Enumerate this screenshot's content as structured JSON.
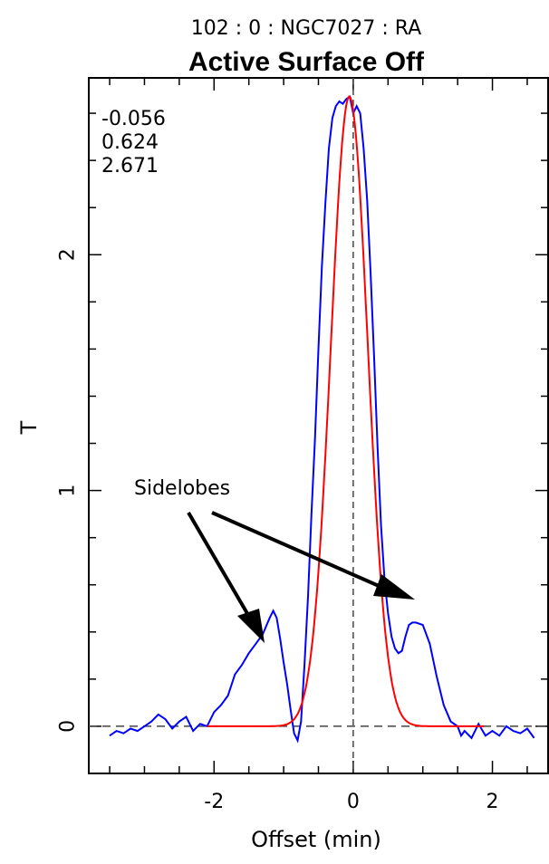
{
  "header": {
    "subtitle": "102 : 0 : NGC7027 : RA",
    "title": "Active Surface Off"
  },
  "stats": [
    "-0.056",
    "0.624",
    "2.671"
  ],
  "annotation": "Sidelobes",
  "colors": {
    "data_series": "#0000ff",
    "fit_series": "#ff0000",
    "reference_lines": "#000000"
  },
  "chart_data": {
    "type": "line",
    "title": "Active Surface Off",
    "subtitle": "102 : 0 : NGC7027 : RA",
    "xlabel": "Offset (min)",
    "ylabel": "T",
    "xlim": [
      -3.8,
      2.8
    ],
    "ylim": [
      -0.2,
      2.75
    ],
    "xticks": [
      -2,
      0,
      2
    ],
    "xtick_labels": [
      "-2",
      "0",
      "2"
    ],
    "yticks": [
      0,
      1,
      2
    ],
    "ytick_labels": [
      "0",
      "1",
      "2"
    ],
    "grid": false,
    "reference_lines": [
      {
        "axis": "x",
        "value": 0,
        "style": "dashed"
      },
      {
        "axis": "y",
        "value": 0,
        "style": "dashed"
      }
    ],
    "series": [
      {
        "color": "#0000ff",
        "x": [
          -3.5,
          -3.4,
          -3.3,
          -3.2,
          -3.1,
          -3.0,
          -2.9,
          -2.8,
          -2.7,
          -2.6,
          -2.5,
          -2.4,
          -2.3,
          -2.2,
          -2.1,
          -2.0,
          -1.9,
          -1.8,
          -1.7,
          -1.6,
          -1.5,
          -1.4,
          -1.3,
          -1.2,
          -1.15,
          -1.1,
          -1.05,
          -1.0,
          -0.95,
          -0.9,
          -0.85,
          -0.8,
          -0.75,
          -0.7,
          -0.65,
          -0.6,
          -0.55,
          -0.5,
          -0.45,
          -0.4,
          -0.35,
          -0.3,
          -0.25,
          -0.2,
          -0.15,
          -0.1,
          -0.05,
          0.0,
          0.05,
          0.1,
          0.15,
          0.2,
          0.25,
          0.3,
          0.35,
          0.4,
          0.45,
          0.5,
          0.55,
          0.6,
          0.65,
          0.7,
          0.75,
          0.8,
          0.85,
          0.9,
          1.0,
          1.1,
          1.2,
          1.3,
          1.4,
          1.5,
          1.55,
          1.6,
          1.7,
          1.8,
          1.9,
          2.0,
          2.1,
          2.2,
          2.3,
          2.4,
          2.5,
          2.6
        ],
        "y": [
          -0.04,
          -0.02,
          -0.03,
          -0.01,
          -0.02,
          0.0,
          0.02,
          0.05,
          0.03,
          -0.01,
          0.02,
          0.04,
          -0.02,
          0.01,
          0.0,
          0.06,
          0.09,
          0.13,
          0.22,
          0.26,
          0.31,
          0.35,
          0.39,
          0.46,
          0.49,
          0.46,
          0.37,
          0.27,
          0.18,
          0.07,
          -0.03,
          -0.06,
          0.02,
          0.26,
          0.55,
          0.9,
          1.22,
          1.6,
          1.95,
          2.22,
          2.45,
          2.58,
          2.63,
          2.65,
          2.64,
          2.66,
          2.67,
          2.6,
          2.63,
          2.6,
          2.45,
          2.23,
          1.92,
          1.56,
          1.18,
          0.85,
          0.62,
          0.48,
          0.38,
          0.33,
          0.31,
          0.32,
          0.38,
          0.43,
          0.44,
          0.44,
          0.43,
          0.35,
          0.21,
          0.09,
          0.02,
          0.0,
          -0.04,
          -0.02,
          -0.05,
          0.01,
          -0.04,
          -0.02,
          -0.04,
          0.0,
          -0.02,
          -0.03,
          -0.01,
          -0.05
        ]
      },
      {
        "color": "#ff0000",
        "type": "gaussian_fit",
        "offset": -0.056,
        "fwhm": 0.624,
        "peak": 2.671
      }
    ]
  }
}
